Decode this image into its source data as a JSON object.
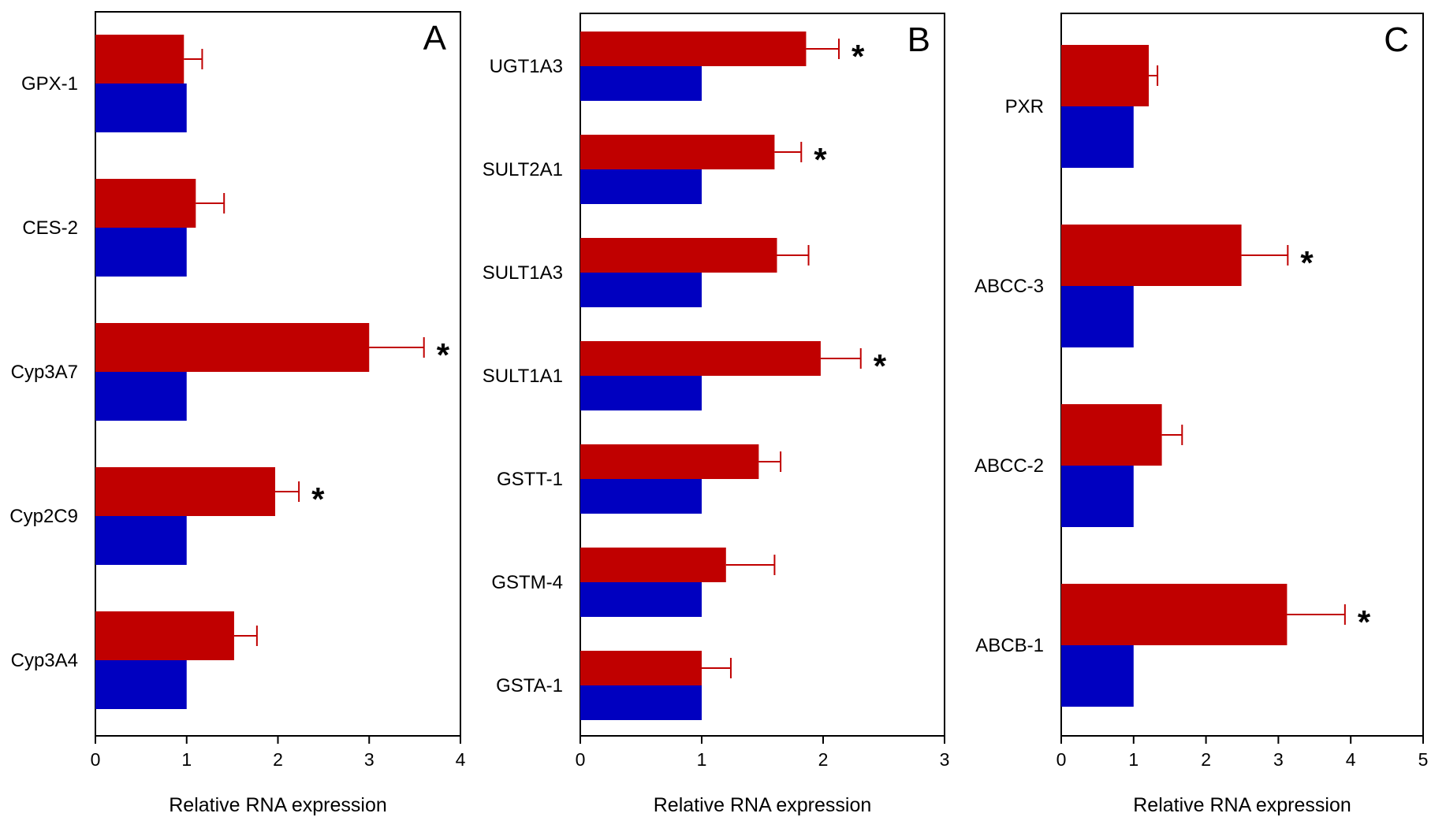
{
  "colors": {
    "treated": "#c00000",
    "control": "#0000c0",
    "error_bar": "#c00000"
  },
  "chart_data": [
    {
      "type": "bar",
      "orientation": "horizontal",
      "panel_label": "A",
      "xlabel": "Relative RNA expression",
      "xlim": [
        0,
        4
      ],
      "xticks": [
        "0",
        "1",
        "2",
        "3",
        "4"
      ],
      "categories": [
        "GPX-1",
        "CES-2",
        "Cyp3A7",
        "Cyp2C9",
        "Cyp3A4"
      ],
      "series": [
        {
          "color": "#c00000",
          "values": [
            0.97,
            1.1,
            3.0,
            1.97,
            1.52
          ],
          "errors": [
            0.2,
            0.31,
            0.6,
            0.26,
            0.25
          ]
        },
        {
          "color": "#0000c0",
          "values": [
            1.0,
            1.0,
            1.0,
            1.0,
            1.0
          ]
        }
      ],
      "significance": [
        "",
        "",
        "*",
        "*",
        ""
      ]
    },
    {
      "type": "bar",
      "orientation": "horizontal",
      "panel_label": "B",
      "xlabel": "Relative RNA expression",
      "xlim": [
        0,
        3
      ],
      "xticks": [
        "0",
        "1",
        "2",
        "3"
      ],
      "categories": [
        "UGT1A3",
        "SULT2A1",
        "SULT1A3",
        "SULT1A1",
        "GSTT-1",
        "GSTM-4",
        "GSTA-1"
      ],
      "series": [
        {
          "color": "#c00000",
          "values": [
            1.86,
            1.6,
            1.62,
            1.98,
            1.47,
            1.2,
            1.0
          ],
          "errors": [
            0.27,
            0.22,
            0.26,
            0.33,
            0.18,
            0.4,
            0.24
          ]
        },
        {
          "color": "#0000c0",
          "values": [
            1.0,
            1.0,
            1.0,
            1.0,
            1.0,
            1.0,
            1.0
          ]
        }
      ],
      "significance": [
        "*",
        "*",
        "",
        "*",
        "",
        "",
        ""
      ]
    },
    {
      "type": "bar",
      "orientation": "horizontal",
      "panel_label": "C",
      "xlabel": "Relative RNA expression",
      "xlim": [
        0,
        5
      ],
      "xticks": [
        "0",
        "1",
        "2",
        "3",
        "4",
        "5"
      ],
      "categories": [
        "PXR",
        "ABCC-3",
        "ABCC-2",
        "ABCB-1"
      ],
      "series": [
        {
          "color": "#c00000",
          "values": [
            1.21,
            2.49,
            1.39,
            3.12
          ],
          "errors": [
            0.12,
            0.64,
            0.28,
            0.8
          ]
        },
        {
          "color": "#0000c0",
          "values": [
            1.0,
            1.0,
            1.0,
            1.0
          ]
        }
      ],
      "significance": [
        "",
        "*",
        "",
        "*"
      ]
    }
  ]
}
